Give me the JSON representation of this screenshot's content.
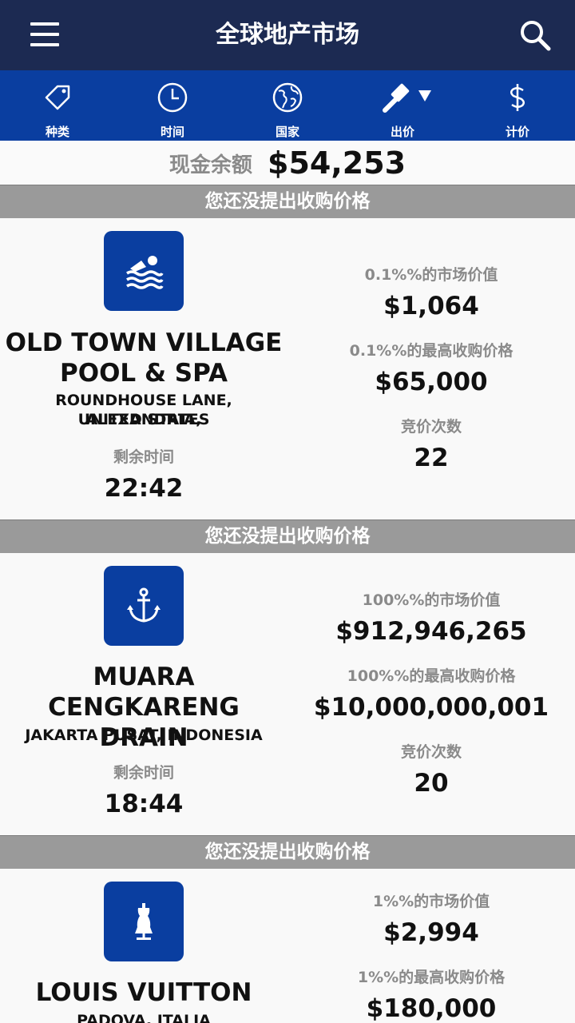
{
  "header": {
    "title": "全球地产市场",
    "menu_icon": "hamburger-menu-icon",
    "search_icon": "search-icon"
  },
  "filters": [
    {
      "label": "种类",
      "icon": "tag-icon"
    },
    {
      "label": "时间",
      "icon": "clock-icon"
    },
    {
      "label": "国家",
      "icon": "globe-icon"
    },
    {
      "label": "出价",
      "icon": "gavel-icon"
    },
    {
      "label": "计价",
      "icon": "dollar-icon"
    }
  ],
  "cash": {
    "label": "现金余额",
    "value": "$54,253"
  },
  "listings": [
    {
      "status": "您还没提出收购价格",
      "icon": "swimming-icon",
      "name_line1": "OLD TOWN VILLAGE",
      "name_line2": "POOL & SPA",
      "location_line1": "ROUNDHOUSE LANE, ALEXANDRIA,",
      "location_line2": "UNITED STATES",
      "time_label": "剩余时间",
      "time_remaining": "22:42",
      "market_value_label": "0.1%%的市场价值",
      "market_value": "$1,064",
      "top_bid_label": "0.1%%的最高收购价格",
      "top_bid": "$65,000",
      "bids_label": "竞价次数",
      "bids": "22"
    },
    {
      "status": "您还没提出收购价格",
      "icon": "anchor-icon",
      "name_line1": "MUARA",
      "name_line2": "CENGKARENG DRAIN",
      "location_line1": "JAKARTA PUSAT, INDONESIA",
      "time_label": "剩余时间",
      "time_remaining": "18:44",
      "market_value_label": "100%%的市场价值",
      "market_value": "$912,946,265",
      "top_bid_label": "100%%的最高收购价格",
      "top_bid": "$10,000,000,001",
      "bids_label": "竞价次数",
      "bids": "20"
    },
    {
      "status": "您还没提出收购价格",
      "icon": "mannequin-icon",
      "name_line1": "LOUIS VUITTON",
      "location_line1": "PADOVA, ITALIA",
      "market_value_label": "1%%的市场价值",
      "market_value": "$2,994",
      "top_bid_label": "1%%的最高收购价格",
      "top_bid": "$180,000"
    }
  ]
}
